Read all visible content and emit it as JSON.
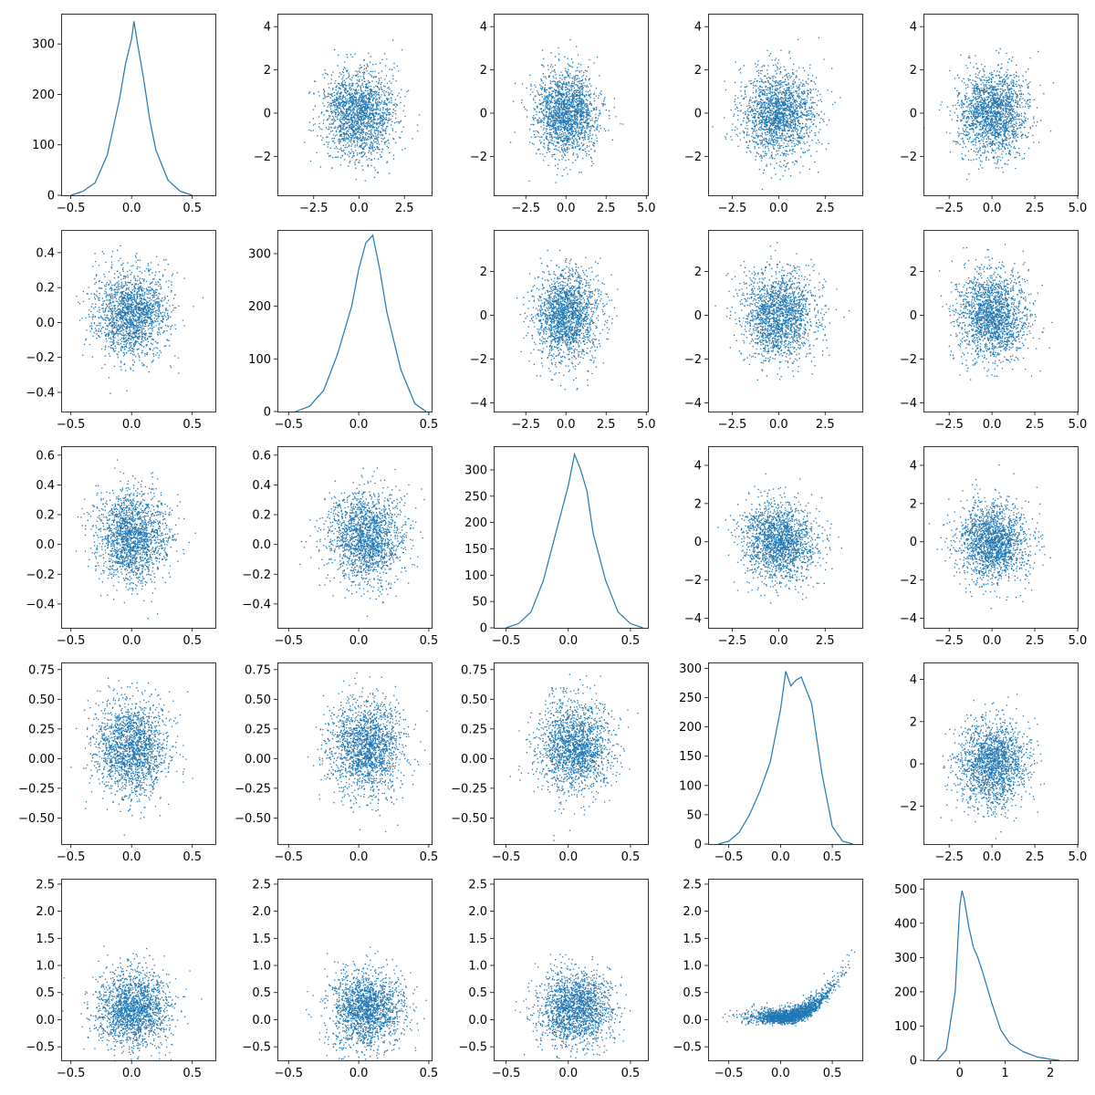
{
  "figure": {
    "description": "Pair plot grid (5x5) of five variables: histograms on the diagonal, scatter plots off-diagonal",
    "grid": false,
    "mark_color": "#1f77b4"
  },
  "chart_data": [
    {
      "type": "line",
      "row": 0,
      "col": 0,
      "xlim": [
        -0.58,
        0.69
      ],
      "ylim": [
        0,
        360
      ],
      "xticks": [
        -0.5,
        0.0,
        0.5
      ],
      "yticks": [
        0,
        100,
        200,
        300
      ],
      "x": [
        -0.5,
        -0.4,
        -0.3,
        -0.2,
        -0.1,
        -0.05,
        0,
        0.02,
        0.05,
        0.1,
        0.15,
        0.2,
        0.3,
        0.4,
        0.5
      ],
      "y": [
        0,
        8,
        25,
        80,
        190,
        260,
        310,
        345,
        300,
        230,
        150,
        90,
        30,
        8,
        0
      ]
    },
    {
      "type": "scatter",
      "row": 0,
      "col": 1,
      "xlim": [
        -4.5,
        4.0
      ],
      "ylim": [
        -3.8,
        4.6
      ],
      "xticks": [
        -2.5,
        0.0,
        2.5
      ],
      "yticks": [
        -2,
        0,
        2,
        4
      ],
      "cx": 0,
      "cy": 0,
      "sx": 1,
      "sy": 1
    },
    {
      "type": "scatter",
      "row": 0,
      "col": 2,
      "xlim": [
        -4.5,
        5.1
      ],
      "ylim": [
        -3.8,
        4.6
      ],
      "xticks": [
        -2.5,
        0.0,
        2.5,
        5.0
      ],
      "yticks": [
        -2,
        0,
        2,
        4
      ],
      "cx": 0,
      "cy": 0,
      "sx": 1,
      "sy": 1
    },
    {
      "type": "scatter",
      "row": 0,
      "col": 3,
      "xlim": [
        -3.8,
        4.5
      ],
      "ylim": [
        -3.8,
        4.6
      ],
      "xticks": [
        -2.5,
        0.0,
        2.5
      ],
      "yticks": [
        -2,
        0,
        2,
        4
      ],
      "cx": 0,
      "cy": 0,
      "sx": 1,
      "sy": 1
    },
    {
      "type": "scatter",
      "row": 0,
      "col": 4,
      "xlim": [
        -4.0,
        5.0
      ],
      "ylim": [
        -3.8,
        4.6
      ],
      "xticks": [
        -2.5,
        0.0,
        2.5,
        5.0
      ],
      "yticks": [
        -2,
        0,
        2,
        4
      ],
      "cx": 0,
      "cy": 0,
      "sx": 1,
      "sy": 1
    },
    {
      "type": "scatter",
      "row": 1,
      "col": 0,
      "xlim": [
        -0.58,
        0.69
      ],
      "ylim": [
        -0.51,
        0.53
      ],
      "xticks": [
        -0.5,
        0.0,
        0.5
      ],
      "yticks": [
        -0.4,
        -0.2,
        0.0,
        0.2,
        0.4
      ],
      "cx": 0.0,
      "cy": 0.05,
      "sx": 0.15,
      "sy": 0.12
    },
    {
      "type": "line",
      "row": 1,
      "col": 1,
      "xlim": [
        -0.58,
        0.52
      ],
      "ylim": [
        0,
        345
      ],
      "xticks": [
        -0.5,
        0.0,
        0.5
      ],
      "yticks": [
        0,
        100,
        200,
        300
      ],
      "x": [
        -0.45,
        -0.35,
        -0.25,
        -0.15,
        -0.05,
        0.0,
        0.05,
        0.1,
        0.15,
        0.2,
        0.3,
        0.4,
        0.48
      ],
      "y": [
        0,
        10,
        40,
        110,
        200,
        270,
        320,
        335,
        270,
        190,
        80,
        15,
        0
      ]
    },
    {
      "type": "scatter",
      "row": 1,
      "col": 2,
      "xlim": [
        -4.5,
        5.1
      ],
      "ylim": [
        -4.4,
        3.9
      ],
      "xticks": [
        -2.5,
        0.0,
        2.5,
        5.0
      ],
      "yticks": [
        -4,
        -2,
        0,
        2
      ],
      "cx": 0,
      "cy": 0,
      "sx": 1,
      "sy": 1
    },
    {
      "type": "scatter",
      "row": 1,
      "col": 3,
      "xlim": [
        -3.8,
        4.5
      ],
      "ylim": [
        -4.4,
        3.9
      ],
      "xticks": [
        -2.5,
        0.0,
        2.5
      ],
      "yticks": [
        -4,
        -2,
        0,
        2
      ],
      "cx": 0,
      "cy": 0,
      "sx": 1,
      "sy": 1
    },
    {
      "type": "scatter",
      "row": 1,
      "col": 4,
      "xlim": [
        -4.0,
        5.0
      ],
      "ylim": [
        -4.4,
        3.9
      ],
      "xticks": [
        -2.5,
        0.0,
        2.5,
        5.0
      ],
      "yticks": [
        -4,
        -2,
        0,
        2
      ],
      "cx": 0,
      "cy": 0,
      "sx": 1,
      "sy": 1
    },
    {
      "type": "scatter",
      "row": 2,
      "col": 0,
      "xlim": [
        -0.58,
        0.69
      ],
      "ylim": [
        -0.56,
        0.66
      ],
      "xticks": [
        -0.5,
        0.0,
        0.5
      ],
      "yticks": [
        -0.4,
        -0.2,
        0.0,
        0.2,
        0.4,
        0.6
      ],
      "cx": 0.0,
      "cy": 0.05,
      "sx": 0.15,
      "sy": 0.15
    },
    {
      "type": "scatter",
      "row": 2,
      "col": 1,
      "xlim": [
        -0.58,
        0.52
      ],
      "ylim": [
        -0.56,
        0.66
      ],
      "xticks": [
        -0.5,
        0.0,
        0.5
      ],
      "yticks": [
        -0.4,
        -0.2,
        0.0,
        0.2,
        0.4,
        0.6
      ],
      "cx": 0.05,
      "cy": 0.05,
      "sx": 0.13,
      "sy": 0.15
    },
    {
      "type": "line",
      "row": 2,
      "col": 2,
      "xlim": [
        -0.6,
        0.64
      ],
      "ylim": [
        0,
        345
      ],
      "xticks": [
        -0.5,
        0.0,
        0.5
      ],
      "yticks": [
        0,
        50,
        100,
        150,
        200,
        250,
        300
      ],
      "x": [
        -0.5,
        -0.4,
        -0.3,
        -0.2,
        -0.1,
        0.0,
        0.05,
        0.1,
        0.15,
        0.2,
        0.3,
        0.4,
        0.5,
        0.6
      ],
      "y": [
        0,
        8,
        30,
        90,
        180,
        270,
        330,
        300,
        260,
        180,
        90,
        30,
        8,
        0
      ]
    },
    {
      "type": "scatter",
      "row": 2,
      "col": 3,
      "xlim": [
        -3.8,
        4.5
      ],
      "ylim": [
        -4.5,
        5.0
      ],
      "xticks": [
        -2.5,
        0.0,
        2.5
      ],
      "yticks": [
        -4,
        -2,
        0,
        2,
        4
      ],
      "cx": 0,
      "cy": 0,
      "sx": 1,
      "sy": 1
    },
    {
      "type": "scatter",
      "row": 2,
      "col": 4,
      "xlim": [
        -4.0,
        5.0
      ],
      "ylim": [
        -4.5,
        5.0
      ],
      "xticks": [
        -2.5,
        0.0,
        2.5,
        5.0
      ],
      "yticks": [
        -4,
        -2,
        0,
        2,
        4
      ],
      "cx": 0,
      "cy": 0,
      "sx": 1,
      "sy": 1
    },
    {
      "type": "scatter",
      "row": 3,
      "col": 0,
      "xlim": [
        -0.58,
        0.69
      ],
      "ylim": [
        -0.72,
        0.81
      ],
      "xticks": [
        -0.5,
        0.0,
        0.5
      ],
      "yticks": [
        -0.5,
        -0.25,
        0.0,
        0.25,
        0.5,
        0.75
      ],
      "cx": 0.0,
      "cy": 0.1,
      "sx": 0.15,
      "sy": 0.2
    },
    {
      "type": "scatter",
      "row": 3,
      "col": 1,
      "xlim": [
        -0.58,
        0.52
      ],
      "ylim": [
        -0.72,
        0.81
      ],
      "xticks": [
        -0.5,
        0.0,
        0.5
      ],
      "yticks": [
        -0.5,
        -0.25,
        0.0,
        0.25,
        0.5,
        0.75
      ],
      "cx": 0.05,
      "cy": 0.1,
      "sx": 0.13,
      "sy": 0.2
    },
    {
      "type": "scatter",
      "row": 3,
      "col": 2,
      "xlim": [
        -0.6,
        0.64
      ],
      "ylim": [
        -0.72,
        0.81
      ],
      "xticks": [
        -0.5,
        0.0,
        0.5
      ],
      "yticks": [
        -0.5,
        -0.25,
        0.0,
        0.25,
        0.5,
        0.75
      ],
      "cx": 0.05,
      "cy": 0.1,
      "sx": 0.15,
      "sy": 0.2
    },
    {
      "type": "line",
      "row": 3,
      "col": 3,
      "xlim": [
        -0.7,
        0.79
      ],
      "ylim": [
        0,
        310
      ],
      "xticks": [
        -0.5,
        0.0,
        0.5
      ],
      "yticks": [
        0,
        50,
        100,
        150,
        200,
        250,
        300
      ],
      "x": [
        -0.6,
        -0.5,
        -0.4,
        -0.3,
        -0.2,
        -0.1,
        0.0,
        0.05,
        0.1,
        0.15,
        0.2,
        0.3,
        0.4,
        0.5,
        0.6,
        0.7
      ],
      "y": [
        0,
        5,
        20,
        50,
        90,
        140,
        230,
        295,
        270,
        280,
        285,
        240,
        120,
        30,
        5,
        0
      ]
    },
    {
      "type": "scatter",
      "row": 3,
      "col": 4,
      "xlim": [
        -4.0,
        5.0
      ],
      "ylim": [
        -3.8,
        4.8
      ],
      "xticks": [
        -2.5,
        0.0,
        2.5,
        5.0
      ],
      "yticks": [
        -2,
        0,
        2,
        4
      ],
      "cx": 0,
      "cy": 0,
      "sx": 1,
      "sy": 1
    },
    {
      "type": "scatter",
      "row": 4,
      "col": 0,
      "xlim": [
        -0.58,
        0.69
      ],
      "ylim": [
        -0.75,
        2.6
      ],
      "xticks": [
        -0.5,
        0.0,
        0.5
      ],
      "yticks": [
        -0.5,
        0.0,
        0.5,
        1.0,
        1.5,
        2.0,
        2.5
      ],
      "cx": 0.0,
      "cy": 0.2,
      "sx": 0.15,
      "sy": 0.35
    },
    {
      "type": "scatter",
      "row": 4,
      "col": 1,
      "xlim": [
        -0.58,
        0.52
      ],
      "ylim": [
        -0.75,
        2.6
      ],
      "xticks": [
        -0.5,
        0.0,
        0.5
      ],
      "yticks": [
        -0.5,
        0.0,
        0.5,
        1.0,
        1.5,
        2.0,
        2.5
      ],
      "cx": 0.05,
      "cy": 0.2,
      "sx": 0.13,
      "sy": 0.35
    },
    {
      "type": "scatter",
      "row": 4,
      "col": 2,
      "xlim": [
        -0.6,
        0.64
      ],
      "ylim": [
        -0.75,
        2.6
      ],
      "xticks": [
        -0.5,
        0.0,
        0.5
      ],
      "yticks": [
        -0.5,
        0.0,
        0.5,
        1.0,
        1.5,
        2.0,
        2.5
      ],
      "cx": 0.05,
      "cy": 0.2,
      "sx": 0.15,
      "sy": 0.35
    },
    {
      "type": "scatter",
      "row": 4,
      "col": 3,
      "xlim": [
        -0.7,
        0.79
      ],
      "ylim": [
        -0.75,
        2.6
      ],
      "xticks": [
        -0.5,
        0.0,
        0.5
      ],
      "yticks": [
        -0.5,
        0.0,
        0.5,
        1.0,
        1.5,
        2.0,
        2.5
      ],
      "cx": 0.1,
      "cy": 0.0,
      "sx": 0.2,
      "sy": 0.15,
      "curve": 2.6
    },
    {
      "type": "line",
      "row": 4,
      "col": 4,
      "xlim": [
        -0.8,
        2.6
      ],
      "ylim": [
        0,
        530
      ],
      "xticks": [
        0,
        1,
        2
      ],
      "yticks": [
        0,
        100,
        200,
        300,
        400,
        500
      ],
      "x": [
        -0.5,
        -0.3,
        -0.1,
        0.0,
        0.05,
        0.1,
        0.2,
        0.3,
        0.4,
        0.5,
        0.7,
        0.9,
        1.1,
        1.4,
        1.7,
        2.0,
        2.2
      ],
      "y": [
        0,
        30,
        200,
        450,
        495,
        470,
        390,
        330,
        300,
        260,
        170,
        90,
        50,
        25,
        10,
        3,
        0
      ]
    }
  ]
}
